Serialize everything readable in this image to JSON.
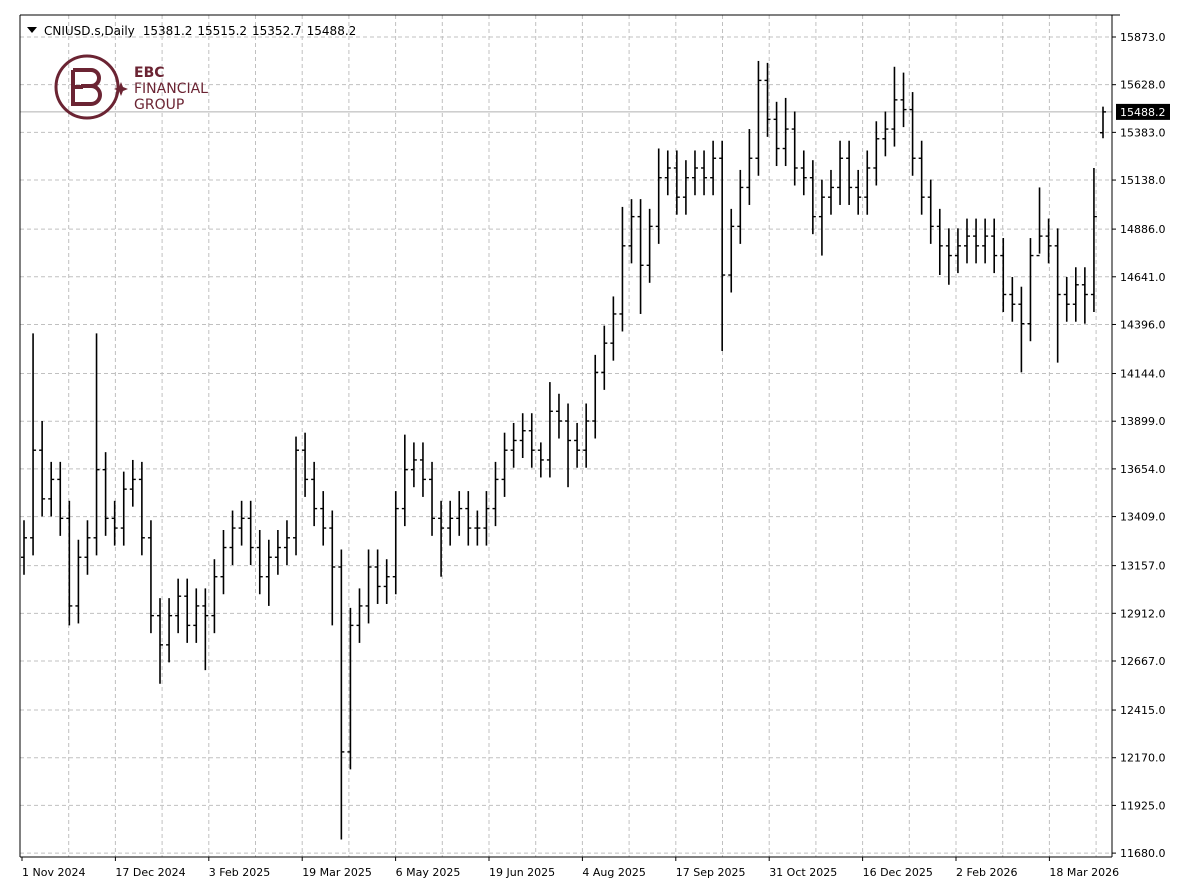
{
  "chart_data": {
    "type": "ohlc",
    "title": "CNIUSD.s,Daily",
    "color": "#000000",
    "watermark": [
      "EBC",
      "FINANCIAL",
      "GROUP"
    ],
    "open": [
      13200,
      13300,
      13750,
      13500,
      13600,
      13400,
      12950,
      13200,
      13300,
      13650,
      13400,
      13350,
      13550,
      13600,
      13300,
      12900,
      12750,
      12900,
      13000,
      12850,
      12950,
      12900,
      13100,
      13250,
      13350,
      13400,
      13250,
      13100,
      13200,
      13250,
      13300,
      13750,
      13600,
      13450,
      13350,
      13150,
      12200,
      12850,
      12950,
      13150,
      13050,
      13100,
      13450,
      13650,
      13700,
      13600,
      13400,
      13350,
      13400,
      13450,
      13350,
      13350,
      13450,
      13600,
      13750,
      13800,
      13850,
      13750,
      13700,
      13950,
      13900,
      13800,
      13750,
      13900,
      14150,
      14300,
      14450,
      14800,
      14950,
      14700,
      14900,
      15150,
      15200,
      15050,
      15150,
      15200,
      15150,
      15250,
      14650,
      14900,
      15100,
      15250,
      15650,
      15450,
      15300,
      15400,
      15200,
      15150,
      14950,
      15050,
      15100,
      15250,
      15100,
      15050,
      15200,
      15350,
      15400,
      15550,
      15500,
      15250,
      15050,
      14900,
      14800,
      14750,
      14800,
      14850,
      14800,
      14850,
      14750,
      14550,
      14500,
      14400,
      14750,
      14850,
      14800,
      14550,
      14500,
      14600,
      14550,
      15381.2
    ],
    "high": [
      13390,
      14350,
      13900,
      13690,
      13690,
      13490,
      13290,
      13390,
      14350,
      13740,
      13490,
      13640,
      13700,
      13690,
      13390,
      12990,
      12990,
      13090,
      13090,
      13040,
      13040,
      13190,
      13340,
      13440,
      13490,
      13490,
      13340,
      13290,
      13340,
      13390,
      13820,
      13840,
      13690,
      13540,
      13440,
      13240,
      12940,
      13040,
      13240,
      13240,
      13190,
      13540,
      13830,
      13790,
      13790,
      13690,
      13490,
      13490,
      13540,
      13540,
      13440,
      13540,
      13690,
      13840,
      13890,
      13940,
      13940,
      13790,
      14100,
      14040,
      13990,
      13890,
      13990,
      14240,
      14390,
      14540,
      15000,
      15040,
      15040,
      14990,
      15300,
      15290,
      15290,
      15240,
      15290,
      15290,
      15340,
      15340,
      14990,
      15190,
      15400,
      15750,
      15740,
      15540,
      15560,
      15490,
      15290,
      15240,
      15140,
      15190,
      15340,
      15340,
      15190,
      15290,
      15440,
      15490,
      15720,
      15690,
      15590,
      15340,
      15140,
      14990,
      14890,
      14890,
      14940,
      14940,
      14940,
      14940,
      14840,
      14640,
      14590,
      14840,
      15100,
      14940,
      14890,
      14640,
      14690,
      14690,
      15200,
      15515.2
    ],
    "low": [
      13110,
      13210,
      13410,
      13410,
      13310,
      12850,
      12860,
      13110,
      13210,
      13310,
      13260,
      13260,
      13460,
      13210,
      12810,
      12550,
      12660,
      12810,
      12760,
      12760,
      12620,
      12810,
      13010,
      13160,
      13260,
      13160,
      13010,
      12950,
      13110,
      13160,
      13210,
      13510,
      13360,
      13260,
      12850,
      11750,
      12110,
      12760,
      12860,
      12960,
      12960,
      13010,
      13360,
      13560,
      13510,
      13310,
      13100,
      13260,
      13310,
      13260,
      13260,
      13260,
      13360,
      13510,
      13660,
      13710,
      13660,
      13610,
      13610,
      13810,
      13560,
      13660,
      13660,
      13810,
      14060,
      14210,
      14360,
      14710,
      14450,
      14610,
      14810,
      15060,
      14960,
      14960,
      15060,
      15060,
      15060,
      14260,
      14560,
      14810,
      15010,
      15160,
      15360,
      15210,
      15210,
      15110,
      15060,
      14860,
      14750,
      14960,
      15010,
      15010,
      14960,
      14960,
      15110,
      15260,
      15310,
      15410,
      15160,
      14960,
      14810,
      14650,
      14600,
      14660,
      14710,
      14710,
      14710,
      14660,
      14460,
      14410,
      14150,
      14310,
      14760,
      14710,
      14200,
      14410,
      14410,
      14400,
      14460,
      15352.7
    ],
    "close": [
      13300,
      13750,
      13500,
      13600,
      13400,
      12950,
      13200,
      13300,
      13650,
      13400,
      13350,
      13550,
      13600,
      13300,
      12900,
      12750,
      12900,
      13000,
      12850,
      12950,
      12900,
      13100,
      13250,
      13350,
      13400,
      13250,
      13100,
      13200,
      13250,
      13300,
      13750,
      13600,
      13450,
      13350,
      13150,
      12200,
      12850,
      12950,
      13150,
      13050,
      13100,
      13450,
      13650,
      13700,
      13600,
      13400,
      13350,
      13400,
      13450,
      13350,
      13350,
      13450,
      13600,
      13750,
      13800,
      13850,
      13750,
      13700,
      13950,
      13900,
      13800,
      13750,
      13900,
      14150,
      14300,
      14450,
      14800,
      14950,
      14700,
      14900,
      15150,
      15200,
      15050,
      15150,
      15200,
      15150,
      15250,
      14650,
      14900,
      15100,
      15250,
      15650,
      15450,
      15300,
      15400,
      15200,
      15150,
      14950,
      15050,
      15100,
      15250,
      15100,
      15050,
      15200,
      15350,
      15400,
      15550,
      15500,
      15250,
      15050,
      14900,
      14800,
      14750,
      14800,
      14850,
      14800,
      14850,
      14750,
      14550,
      14500,
      14400,
      14750,
      14850,
      14800,
      14550,
      14500,
      14600,
      14550,
      14950,
      15488.2
    ],
    "ylim": [
      11660,
      15986
    ],
    "yticks": [
      {
        "value": 15873,
        "label": "15873.0"
      },
      {
        "value": 15628,
        "label": "15628.0"
      },
      {
        "value": 15383,
        "label": "15383.0"
      },
      {
        "value": 15138,
        "label": "15138.0"
      },
      {
        "value": 14886,
        "label": "14886.0"
      },
      {
        "value": 14641,
        "label": "14641.0"
      },
      {
        "value": 14396,
        "label": "14396.0"
      },
      {
        "value": 14144,
        "label": "14144.0"
      },
      {
        "value": 13899,
        "label": "13899.0"
      },
      {
        "value": 13654,
        "label": "13654.0"
      },
      {
        "value": 13409,
        "label": "13409.0"
      },
      {
        "value": 13157,
        "label": "13157.0"
      },
      {
        "value": 12912,
        "label": "12912.0"
      },
      {
        "value": 12667,
        "label": "12667.0"
      },
      {
        "value": 12415,
        "label": "12415.0"
      },
      {
        "value": 12170,
        "label": "12170.0"
      },
      {
        "value": 11925,
        "label": "11925.0"
      },
      {
        "value": 11680,
        "label": "11680.0"
      }
    ],
    "xticks": [
      "1 Nov 2024",
      "17 Dec 2024",
      "3 Feb 2025",
      "19 Mar 2025",
      "6 May 2025",
      "19 Jun 2025",
      "4 Aug 2025",
      "17 Sep 2025",
      "31 Oct 2025",
      "16 Dec 2025",
      "2 Feb 2026",
      "18 Mar 2026"
    ],
    "grid": true
  }
}
